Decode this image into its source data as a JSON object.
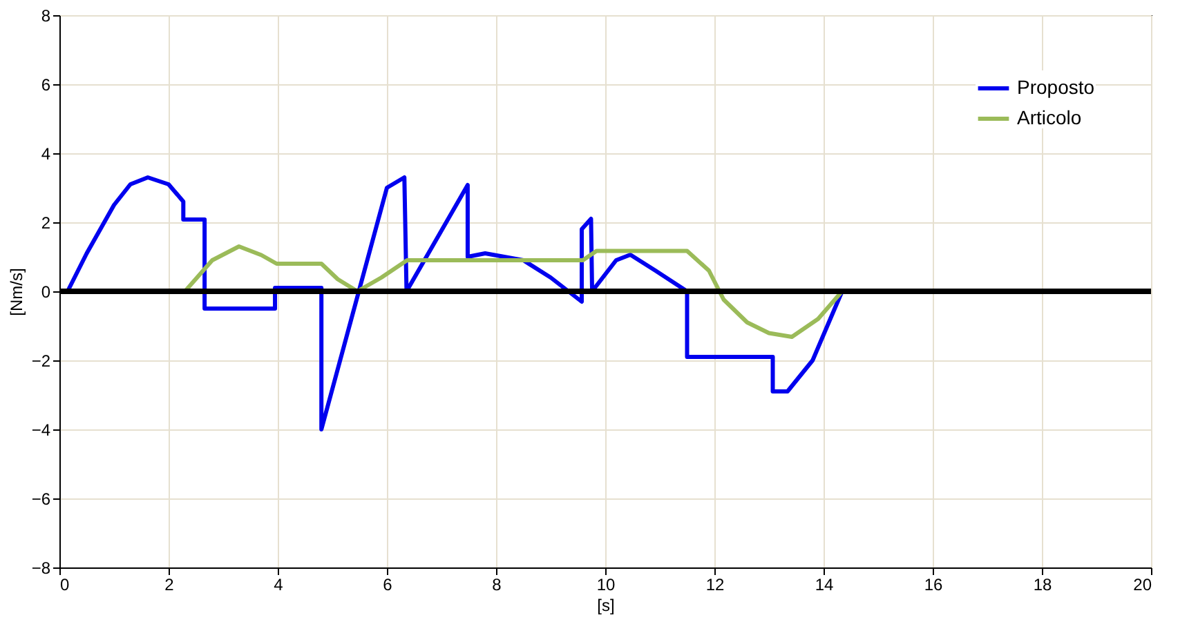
{
  "chart_data": {
    "type": "line",
    "xlabel": "[s]",
    "ylabel": "[Nm/s]",
    "xlim": [
      0,
      20
    ],
    "xticks": [
      0,
      2,
      4,
      6,
      8,
      10,
      12,
      14,
      16,
      18,
      20
    ],
    "ylim": [
      -8,
      8
    ],
    "yticks": [
      -8,
      -6,
      -4,
      -2,
      0,
      2,
      4,
      6,
      8
    ],
    "grid": true,
    "legend": "top right",
    "line_style": "solid",
    "marker": "none",
    "ref_lines": [
      {
        "axis": "y",
        "value": 0,
        "color": "#000000"
      }
    ],
    "series": [
      {
        "name": "Proposto",
        "color": "#0000ee",
        "x": [
          0,
          0.15,
          0.5,
          1.0,
          1.3,
          1.62,
          2.0,
          2.27,
          2.27,
          2.66,
          2.66,
          3.95,
          3.95,
          4.8,
          4.8,
          6.0,
          6.32,
          6.36,
          7.48,
          7.48,
          7.8,
          8.5,
          9.0,
          9.57,
          9.57,
          9.74,
          9.76,
          10.2,
          10.46,
          10.92,
          11.5,
          11.5,
          13.07,
          13.07,
          13.34,
          13.8,
          14.34,
          20
        ],
        "values": [
          0,
          0,
          1.1,
          2.5,
          3.1,
          3.3,
          3.1,
          2.6,
          2.08,
          2.08,
          -0.5,
          -0.5,
          0.1,
          0.1,
          -4.0,
          3.0,
          3.3,
          0,
          3.08,
          1.0,
          1.1,
          0.9,
          0.4,
          -0.3,
          1.8,
          2.1,
          0,
          0.9,
          1.06,
          0.6,
          0,
          -1.9,
          -1.9,
          -2.9,
          -2.9,
          -2.0,
          0,
          0
        ]
      },
      {
        "name": "Articolo",
        "color": "#9bbb59",
        "x": [
          0,
          2.3,
          2.8,
          3.29,
          3.7,
          3.98,
          4.8,
          5.1,
          5.46,
          5.9,
          6.37,
          9.59,
          9.84,
          11.5,
          11.9,
          12.17,
          12.6,
          13.0,
          13.42,
          13.9,
          14.34,
          20
        ],
        "values": [
          0,
          0,
          0.9,
          1.3,
          1.05,
          0.8,
          0.8,
          0.35,
          0,
          0.4,
          0.9,
          0.9,
          1.17,
          1.17,
          0.6,
          -0.24,
          -0.9,
          -1.21,
          -1.32,
          -0.8,
          0,
          0
        ]
      }
    ]
  }
}
